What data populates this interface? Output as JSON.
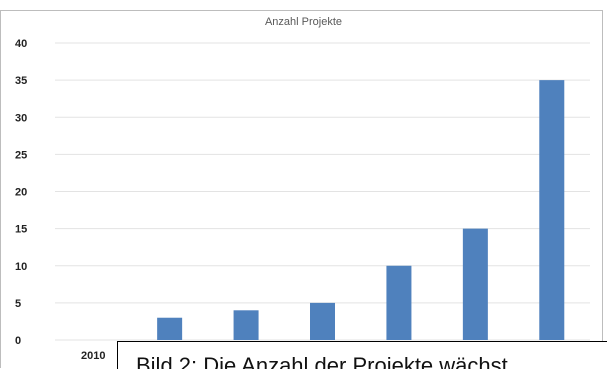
{
  "chart_data": {
    "type": "bar",
    "title": "Anzahl Projekte",
    "categories": [
      "2010",
      "",
      "",
      "",
      "",
      "",
      ""
    ],
    "values": [
      0,
      3,
      4,
      5,
      10,
      15,
      35
    ],
    "ylim": [
      0,
      40
    ],
    "yticks": [
      "0",
      "5",
      "10",
      "15",
      "20",
      "25",
      "30",
      "35",
      "40"
    ],
    "grid": true,
    "legend": "none",
    "bar_color": "#4f81bd"
  },
  "caption": {
    "text": "Bild 2: Die Anzahl der Projekte wächst"
  }
}
